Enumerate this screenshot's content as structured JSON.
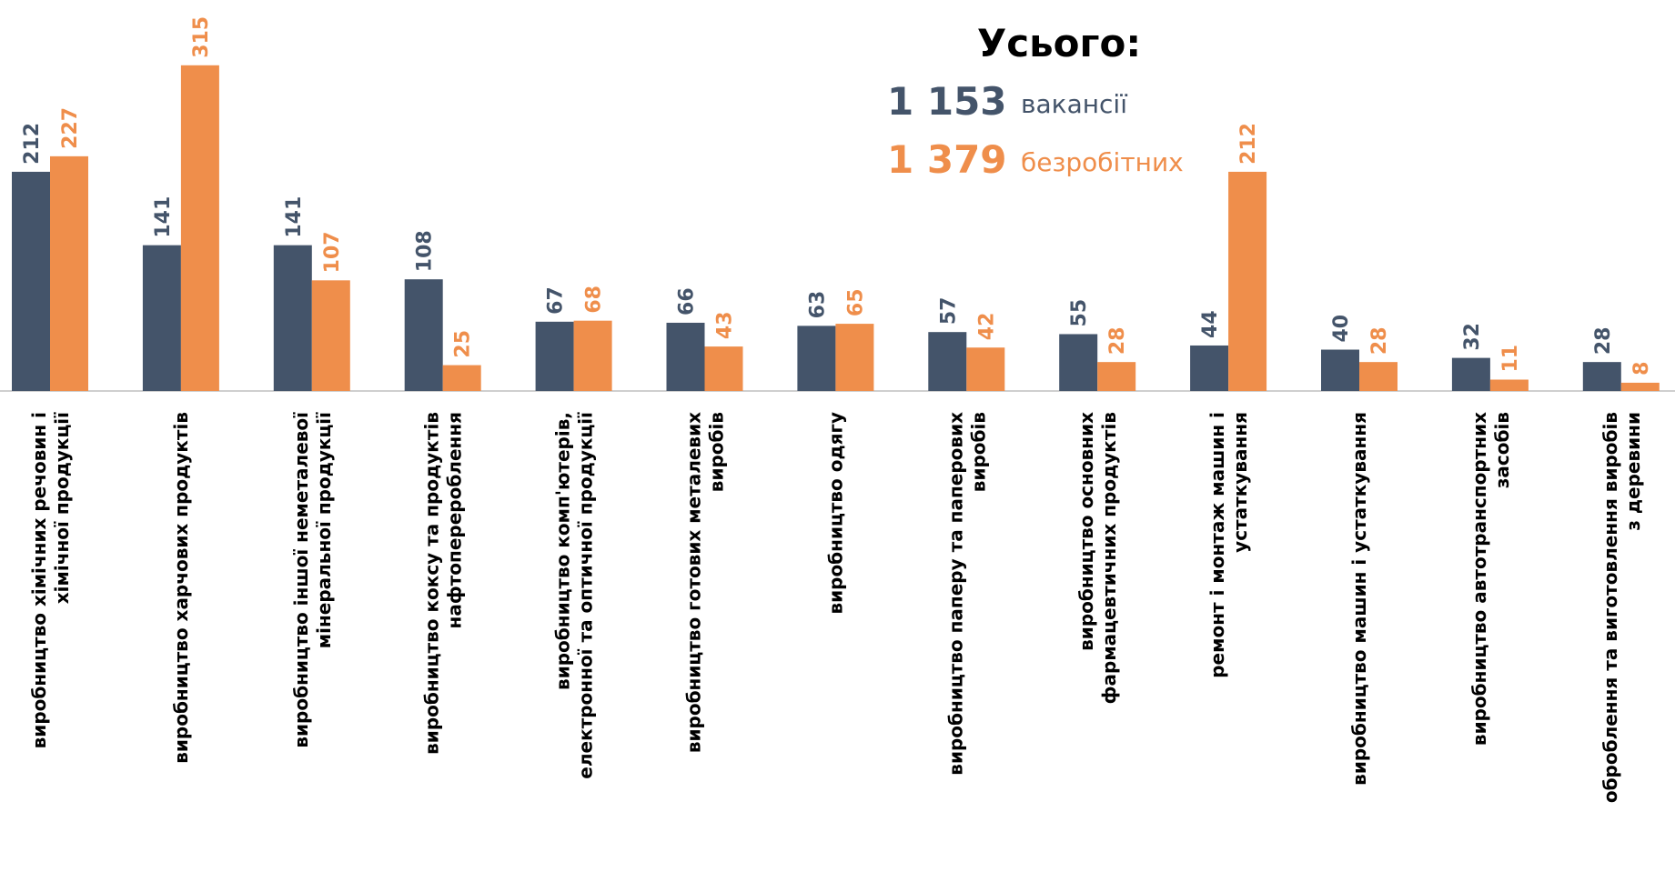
{
  "chart_data": {
    "type": "bar",
    "categories": [
      "виробництво хімічних речовин і\nхімічної продукції",
      "виробництво харчових продуктів",
      "виробництво іншої неметалевої\nмінеральної продукції",
      "виробництво коксу та продуктів\nнафтоперероблення",
      "виробництво комп'ютерів,\nелектронної та оптичної продукції",
      "виробництво готових металевих\nвиробів",
      "виробництво одягу",
      "виробництво паперу та паперових\nвиробів",
      "виробництво основних\nфармацевтичних продуктів",
      "ремонт і монтаж машин і\nустаткування",
      "виробництво машин і устаткування",
      "виробництво автотранспортних\nзасобів",
      "оброблення та виготовлення виробів\nз деревини"
    ],
    "series": [
      {
        "name": "вакансії",
        "color": "#44546a",
        "values": [
          212,
          141,
          141,
          108,
          67,
          66,
          63,
          57,
          55,
          44,
          40,
          32,
          28
        ]
      },
      {
        "name": "безробітних",
        "color": "#ef8e4b",
        "values": [
          227,
          315,
          107,
          25,
          68,
          43,
          65,
          42,
          28,
          212,
          28,
          11,
          8
        ]
      }
    ],
    "ylim": [
      0,
      350
    ],
    "summary": {
      "title": "Усього:",
      "totals": [
        "1 153",
        "1 379"
      ]
    }
  }
}
